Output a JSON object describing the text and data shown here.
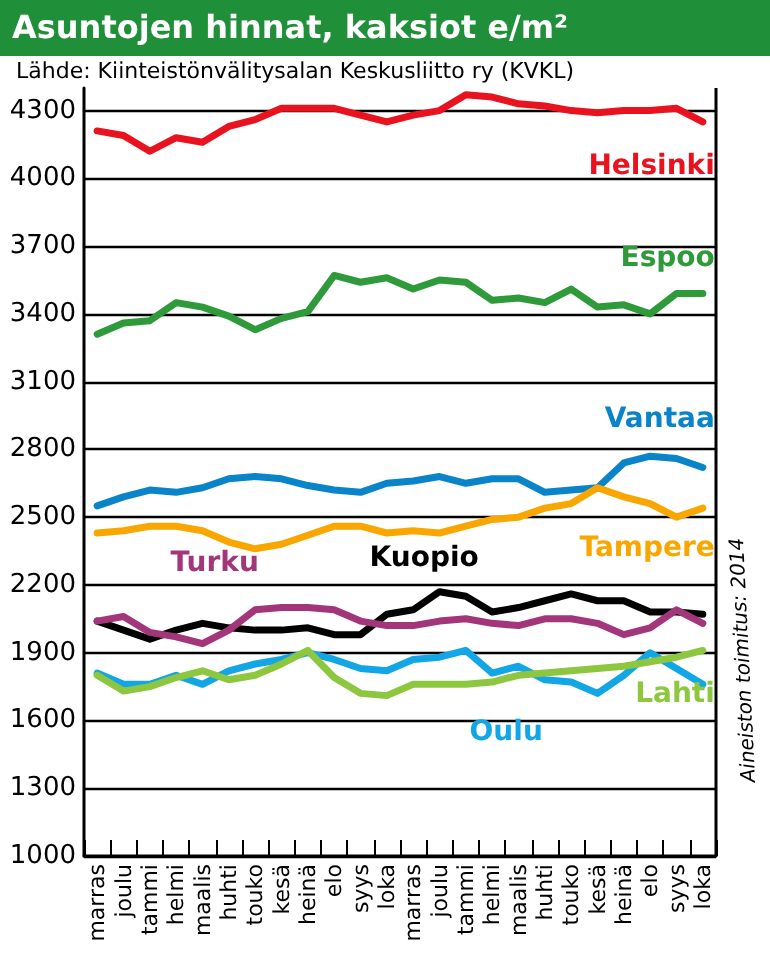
{
  "chart_data": {
    "type": "line",
    "title": "Asuntojen hinnat, kaksiot e/m²",
    "subtitle": "Lähde: Kiinteistönvälitysalan Keskusliitto ry (KVKL)",
    "annotations": [
      "Aineiston toimitus: 2014"
    ],
    "categories": [
      "marras",
      "joulu",
      "tammi",
      "helmi",
      "maalis",
      "huhti",
      "touko",
      "kesä",
      "heinä",
      "elo",
      "syys",
      "loka",
      "marras",
      "joulu",
      "tammi",
      "helmi",
      "maalis",
      "huhti",
      "touko",
      "kesä",
      "heinä",
      "elo",
      "syys",
      "loka"
    ],
    "series": [
      {
        "name": "Helsinki",
        "color": "#e8131f",
        "values": [
          4210,
          4190,
          4120,
          4180,
          4160,
          4230,
          4260,
          4310,
          4310,
          4310,
          4280,
          4250,
          4280,
          4300,
          4370,
          4360,
          4330,
          4320,
          4300,
          4290,
          4300,
          4300,
          4310,
          4250
        ]
      },
      {
        "name": "Espoo",
        "color": "#2e9a3a",
        "values": [
          3310,
          3360,
          3370,
          3450,
          3430,
          3390,
          3330,
          3380,
          3410,
          3570,
          3540,
          3560,
          3510,
          3550,
          3540,
          3460,
          3470,
          3450,
          3510,
          3430,
          3440,
          3400,
          3490,
          3490
        ]
      },
      {
        "name": "Vantaa",
        "color": "#0a84c8",
        "values": [
          2550,
          2590,
          2620,
          2610,
          2630,
          2670,
          2680,
          2670,
          2640,
          2620,
          2610,
          2650,
          2660,
          2680,
          2650,
          2670,
          2670,
          2610,
          2620,
          2630,
          2740,
          2770,
          2760,
          2720
        ]
      },
      {
        "name": "Tampere",
        "color": "#f9a700",
        "values": [
          2430,
          2440,
          2460,
          2460,
          2440,
          2390,
          2360,
          2380,
          2420,
          2460,
          2460,
          2430,
          2440,
          2430,
          2460,
          2490,
          2500,
          2540,
          2560,
          2630,
          2590,
          2560,
          2500,
          2540
        ]
      },
      {
        "name": "Kuopio",
        "color": "#000000",
        "values": [
          2040,
          2000,
          1960,
          2000,
          2030,
          2010,
          2000,
          2000,
          2010,
          1980,
          1980,
          2070,
          2090,
          2170,
          2150,
          2080,
          2100,
          2130,
          2160,
          2130,
          2130,
          2080,
          2080,
          2070
        ]
      },
      {
        "name": "Turku",
        "color": "#a3357a",
        "values": [
          2040,
          2060,
          1990,
          1970,
          1940,
          2000,
          2090,
          2100,
          2100,
          2090,
          2040,
          2020,
          2020,
          2040,
          2050,
          2030,
          2020,
          2050,
          2050,
          2030,
          1980,
          2010,
          2090,
          2030
        ]
      },
      {
        "name": "Oulu",
        "color": "#13a6e6",
        "values": [
          1810,
          1760,
          1760,
          1800,
          1760,
          1820,
          1850,
          1870,
          1900,
          1870,
          1830,
          1820,
          1870,
          1880,
          1910,
          1810,
          1840,
          1780,
          1770,
          1720,
          1800,
          1900,
          1830,
          1760
        ]
      },
      {
        "name": "Lahti",
        "color": "#8dc63f",
        "values": [
          1800,
          1730,
          1750,
          1790,
          1820,
          1780,
          1800,
          1850,
          1910,
          1790,
          1720,
          1710,
          1760,
          1760,
          1760,
          1770,
          1800,
          1810,
          1820,
          1830,
          1840,
          1860,
          1880,
          1910
        ]
      }
    ],
    "ylim": [
      1000,
      4400
    ],
    "yticks": [
      1000,
      1300,
      1600,
      1900,
      2200,
      2500,
      2800,
      3100,
      3400,
      3700,
      4000,
      4300
    ],
    "grid": "y",
    "legend": false,
    "marker": "none",
    "line_style": "solid"
  }
}
